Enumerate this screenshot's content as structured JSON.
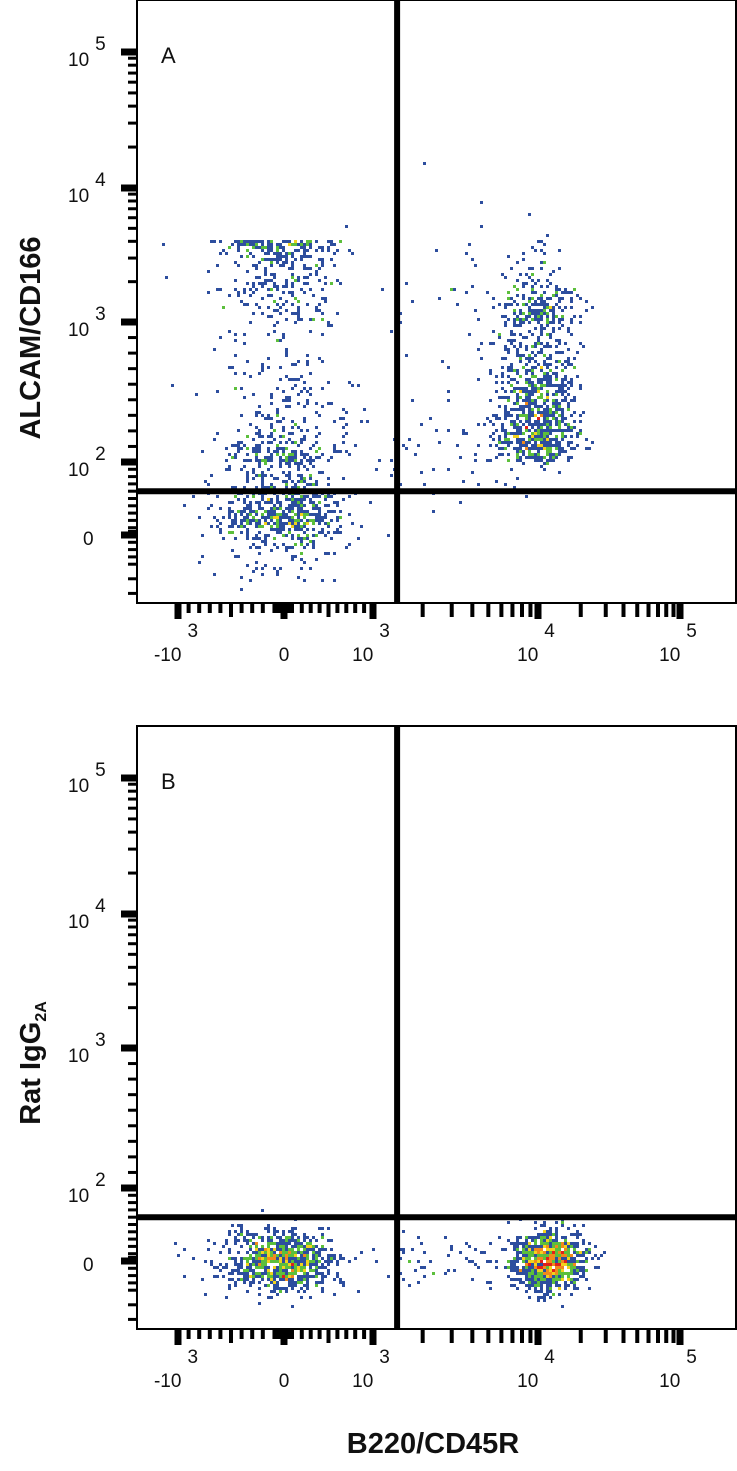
{
  "chart_data": [
    {
      "type": "scatter",
      "panel_label": "A",
      "ylabel": "ALCAM/CD166",
      "xlabel": "B220/CD45R",
      "x_scale": "biexponential",
      "y_scale": "biexponential",
      "x_ticks": [
        {
          "base": "-10",
          "exp": "3"
        },
        {
          "base": "0",
          "exp": ""
        },
        {
          "base": "10",
          "exp": "3"
        },
        {
          "base": "10",
          "exp": "4"
        },
        {
          "base": "10",
          "exp": "5"
        }
      ],
      "y_ticks": [
        {
          "base": "0",
          "exp": ""
        },
        {
          "base": "10",
          "exp": "2"
        },
        {
          "base": "10",
          "exp": "3"
        },
        {
          "base": "10",
          "exp": "4"
        },
        {
          "base": "10",
          "exp": "5"
        }
      ],
      "quadrant_gate": {
        "x": 1400,
        "y": 60
      },
      "populations": [
        {
          "x_center": 0,
          "x_spread": 320,
          "y_min": 10,
          "y_max": 4000,
          "count": 1300
        },
        {
          "x_center": 10000,
          "x_log_sd": 0.13,
          "y_center": 500,
          "y_log_sd": 0.33,
          "count": 1100
        },
        {
          "x_center": 3000,
          "x_log_sd": 0.3,
          "y_center": 300,
          "y_log_sd": 0.6,
          "count": 90
        }
      ]
    },
    {
      "type": "scatter",
      "panel_label": "B",
      "ylabel": "Rat IgG",
      "ylabel_sub": "2A",
      "xlabel": "B220/CD45R",
      "x_scale": "biexponential",
      "y_scale": "biexponential",
      "x_ticks": [
        {
          "base": "-10",
          "exp": "3"
        },
        {
          "base": "0",
          "exp": ""
        },
        {
          "base": "10",
          "exp": "3"
        },
        {
          "base": "10",
          "exp": "4"
        },
        {
          "base": "10",
          "exp": "5"
        }
      ],
      "y_ticks": [
        {
          "base": "0",
          "exp": ""
        },
        {
          "base": "10",
          "exp": "2"
        },
        {
          "base": "10",
          "exp": "3"
        },
        {
          "base": "10",
          "exp": "4"
        },
        {
          "base": "10",
          "exp": "5"
        }
      ],
      "quadrant_gate": {
        "x": 1400,
        "y": 60
      },
      "populations": [
        {
          "x_center": 0,
          "x_spread": 280,
          "y_center": 0,
          "y_spread": 20,
          "count": 900
        },
        {
          "x_center": 12000,
          "x_log_sd": 0.12,
          "y_center": 0,
          "y_spread": 20,
          "count": 1000
        },
        {
          "x_center": 3000,
          "x_log_sd": 0.3,
          "y_center": 0,
          "y_spread": 15,
          "count": 60
        }
      ]
    }
  ],
  "shared_xlabel": "B220/CD45R",
  "density_colors": [
    "#2d4e9e",
    "#3aa6b8",
    "#5cbf3c",
    "#f2d21d",
    "#f08a1c",
    "#e0201b"
  ]
}
